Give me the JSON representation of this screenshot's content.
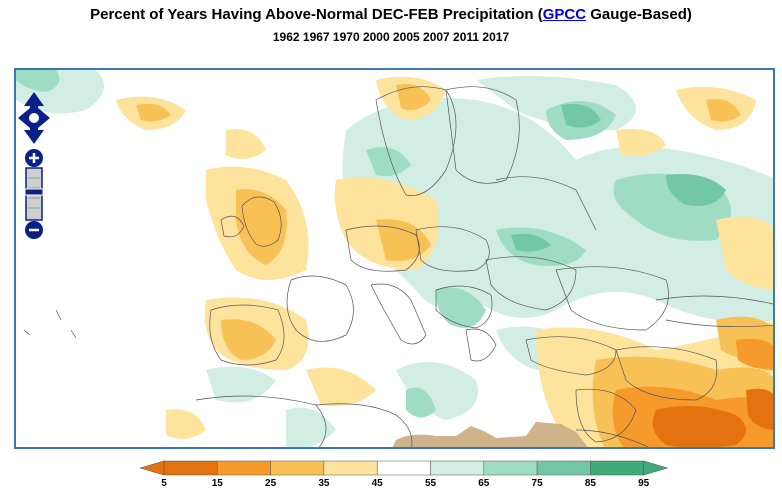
{
  "title": {
    "prefix": "Percent of Years Having Above-Normal DEC-FEB Precipitation (",
    "link": "GPCC",
    "suffix": " Gauge-Based)"
  },
  "subtitle": "1962 1967 1970 2000 2005 2007 2011 2017",
  "map_controls": {
    "pan_icons": [
      "pan-up-icon",
      "pan-down-icon",
      "pan-left-icon",
      "pan-right-icon"
    ],
    "zoom_in_icon": "plus-icon",
    "zoom_out_icon": "minus-icon",
    "control_color": "#0b1f8a"
  },
  "legend": {
    "ticks": [
      "5",
      "15",
      "25",
      "35",
      "45",
      "55",
      "65",
      "75",
      "85",
      "95"
    ],
    "colors": [
      "#e3720f",
      "#f59a2b",
      "#f8c155",
      "#fde39b",
      "#ffffff",
      "#d2ede3",
      "#9fdcc4",
      "#73c7a5",
      "#3eab78"
    ],
    "below_color": "#e3720f",
    "above_color": "#3eab78"
  },
  "map_palette": {
    "land": "#ffffff",
    "water_border": "#666666",
    "green_light": "#d2ede3",
    "green_mid": "#9fdcc4",
    "green_dark": "#73c7a5",
    "orange_light": "#fde39b",
    "orange_mid": "#f8c155",
    "orange_dark": "#f59a2b",
    "orange_deep": "#e3720f",
    "mask_tan": "#cfb48b"
  }
}
